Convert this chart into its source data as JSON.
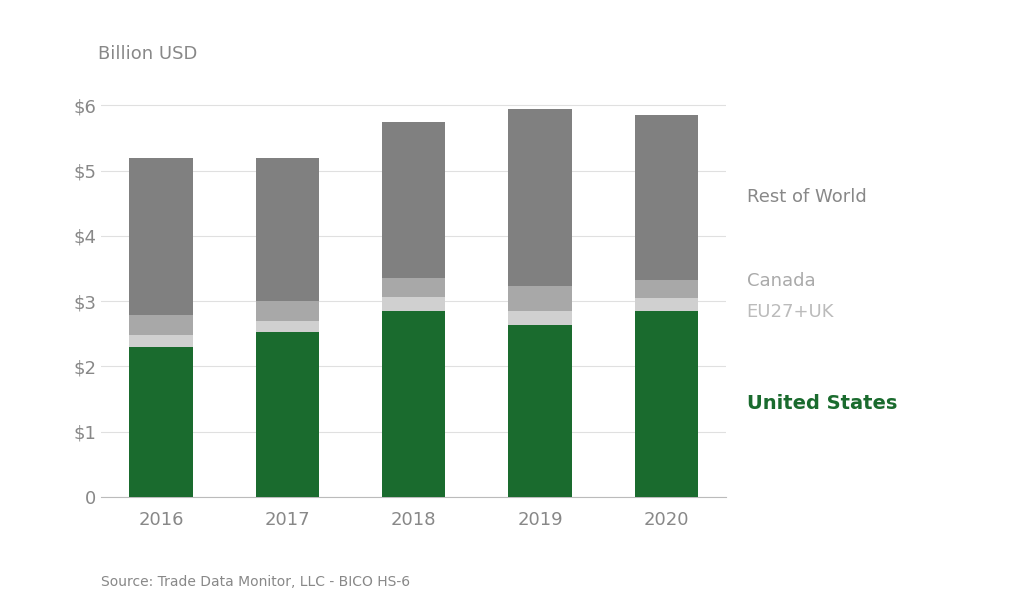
{
  "years": [
    "2016",
    "2017",
    "2018",
    "2019",
    "2020"
  ],
  "united_states": [
    2.3,
    2.52,
    2.85,
    2.63,
    2.85
  ],
  "eu27uk": [
    0.18,
    0.18,
    0.22,
    0.22,
    0.2
  ],
  "canada": [
    0.3,
    0.3,
    0.28,
    0.38,
    0.28
  ],
  "rest_of_world": [
    2.42,
    2.2,
    2.4,
    2.72,
    2.52
  ],
  "color_us": "#1a6b2e",
  "color_eu27uk": "#d0d0d0",
  "color_canada": "#a8a8a8",
  "color_row": "#808080",
  "top_label": "Billion USD",
  "source": "Source: Trade Data Monitor, LLC - BICO HS-6",
  "yticks": [
    0,
    1,
    2,
    3,
    4,
    5,
    6
  ],
  "ytick_labels": [
    "0",
    "$1",
    "$2",
    "$3",
    "$4",
    "$5",
    "$6"
  ],
  "legend_us": "United States",
  "legend_eu27uk": "EU27+UK",
  "legend_canada": "Canada",
  "legend_row": "Rest of World",
  "background_color": "#ffffff",
  "ylim": [
    0,
    6.5
  ]
}
